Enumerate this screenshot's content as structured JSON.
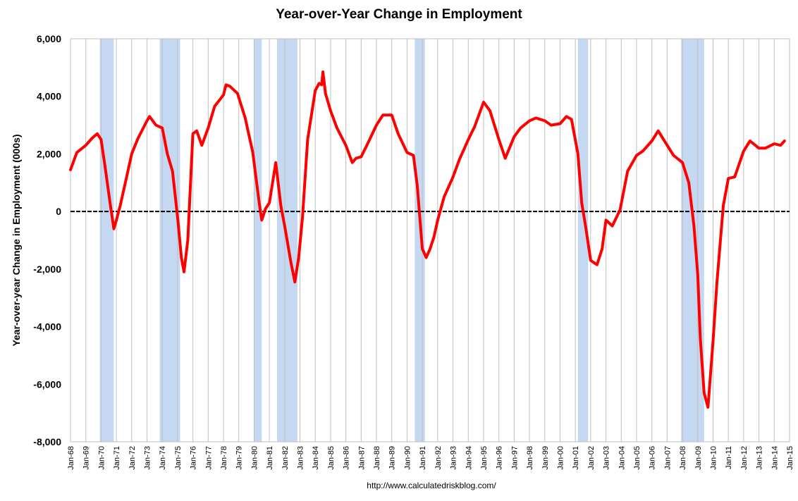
{
  "chart_data": {
    "type": "line",
    "title": "Year-over-Year Change in Employment",
    "ylabel": "Year-over-year Change in Employment (000s)",
    "xlabel": "",
    "source": "http://www.calculatedriskblog.com/",
    "ylim": [
      -8000,
      6000
    ],
    "yticks": [
      6000,
      4000,
      2000,
      0,
      -2000,
      -4000,
      -6000,
      -8000
    ],
    "ytick_labels": [
      "6,000",
      "4,000",
      "2,000",
      "0",
      "-2,000",
      "-4,000",
      "-6,000",
      "-8,000"
    ],
    "xlim": [
      "1968-01",
      "2015-01"
    ],
    "xtick_labels": [
      "Jan-68",
      "Jan-69",
      "Jan-70",
      "Jan-71",
      "Jan-72",
      "Jan-73",
      "Jan-74",
      "Jan-75",
      "Jan-76",
      "Jan-77",
      "Jan-78",
      "Jan-79",
      "Jan-80",
      "Jan-81",
      "Jan-82",
      "Jan-83",
      "Jan-84",
      "Jan-85",
      "Jan-86",
      "Jan-87",
      "Jan-88",
      "Jan-89",
      "Jan-90",
      "Jan-91",
      "Jan-92",
      "Jan-93",
      "Jan-94",
      "Jan-95",
      "Jan-96",
      "Jan-97",
      "Jan-98",
      "Jan-99",
      "Jan-00",
      "Jan-01",
      "Jan-02",
      "Jan-03",
      "Jan-04",
      "Jan-05",
      "Jan-06",
      "Jan-07",
      "Jan-08",
      "Jan-09",
      "Jan-10",
      "Jan-11",
      "Jan-12",
      "Jan-13",
      "Jan-14",
      "Jan-15"
    ],
    "grid": "vertical",
    "line_color": "#ff0000",
    "recession_color": "#c5d8f1",
    "recessions": [
      {
        "start": "1969-12",
        "end": "1970-11"
      },
      {
        "start": "1973-11",
        "end": "1975-03"
      },
      {
        "start": "1980-01",
        "end": "1980-07"
      },
      {
        "start": "1981-07",
        "end": "1982-11"
      },
      {
        "start": "1990-07",
        "end": "1991-03"
      },
      {
        "start": "2001-03",
        "end": "2001-11"
      },
      {
        "start": "2007-12",
        "end": "2009-06"
      }
    ],
    "series": [
      {
        "x": [
          "1968-01",
          "1968-06",
          "1969-01",
          "1969-06",
          "1969-10",
          "1970-01",
          "1970-04",
          "1970-08",
          "1970-11",
          "1971-01",
          "1971-04",
          "1971-08",
          "1972-01",
          "1972-06",
          "1973-01",
          "1973-03",
          "1973-08",
          "1974-01",
          "1974-05",
          "1974-09",
          "1975-01",
          "1975-04",
          "1975-06",
          "1975-09",
          "1976-01",
          "1976-04",
          "1976-08",
          "1977-01",
          "1977-06",
          "1978-01",
          "1978-03",
          "1978-06",
          "1978-12",
          "1979-06",
          "1979-12",
          "1980-05",
          "1980-07",
          "1980-10",
          "1981-01",
          "1981-06",
          "1981-10",
          "1982-01",
          "1982-06",
          "1982-09",
          "1982-12",
          "1983-03",
          "1983-07",
          "1984-01",
          "1984-04",
          "1984-06",
          "1984-07",
          "1984-09",
          "1985-01",
          "1985-06",
          "1986-01",
          "1986-06",
          "1986-09",
          "1987-01",
          "1987-06",
          "1988-01",
          "1988-06",
          "1989-01",
          "1989-06",
          "1990-01",
          "1990-06",
          "1990-09",
          "1991-01",
          "1991-04",
          "1991-07",
          "1991-10",
          "1992-01",
          "1992-06",
          "1993-01",
          "1993-06",
          "1994-01",
          "1994-06",
          "1995-01",
          "1995-06",
          "1996-01",
          "1996-06",
          "1997-01",
          "1997-06",
          "1998-01",
          "1998-06",
          "1999-01",
          "1999-06",
          "2000-01",
          "2000-06",
          "2000-10",
          "2001-03",
          "2001-06",
          "2001-09",
          "2002-01",
          "2002-06",
          "2002-10",
          "2003-01",
          "2003-06",
          "2003-12",
          "2004-06",
          "2005-01",
          "2005-06",
          "2006-01",
          "2006-06",
          "2007-01",
          "2007-06",
          "2008-01",
          "2008-06",
          "2008-10",
          "2009-01",
          "2009-03",
          "2009-06",
          "2009-09",
          "2010-01",
          "2010-04",
          "2010-09",
          "2011-01",
          "2011-06",
          "2012-01",
          "2012-06",
          "2013-01",
          "2013-06",
          "2014-01",
          "2014-06",
          "2014-09"
        ],
        "y": [
          1450,
          2050,
          2300,
          2550,
          2700,
          2500,
          1600,
          300,
          -600,
          -300,
          200,
          1000,
          2000,
          2550,
          3150,
          3300,
          3000,
          2900,
          2000,
          1400,
          -200,
          -1600,
          -2100,
          -1000,
          2700,
          2800,
          2300,
          2900,
          3650,
          4050,
          4400,
          4350,
          4100,
          3250,
          2050,
          300,
          -300,
          100,
          300,
          1700,
          200,
          -500,
          -1800,
          -2450,
          -1600,
          -200,
          2500,
          4200,
          4450,
          4400,
          4850,
          4100,
          3500,
          2900,
          2300,
          1700,
          1850,
          1900,
          2350,
          3000,
          3350,
          3350,
          2700,
          2050,
          1950,
          900,
          -1300,
          -1600,
          -1300,
          -900,
          -300,
          500,
          1200,
          1800,
          2500,
          2950,
          3800,
          3500,
          2500,
          1850,
          2600,
          2900,
          3150,
          3250,
          3150,
          3000,
          3050,
          3300,
          3200,
          2000,
          300,
          -500,
          -1700,
          -1850,
          -1300,
          -300,
          -500,
          50,
          1400,
          1950,
          2100,
          2450,
          2800,
          2300,
          1950,
          1700,
          1000,
          -500,
          -2200,
          -4400,
          -6300,
          -6800,
          -4500,
          -2500,
          200,
          1150,
          1200,
          2100,
          2450,
          2200,
          2200,
          2350,
          2300,
          2450
        ]
      }
    ]
  }
}
